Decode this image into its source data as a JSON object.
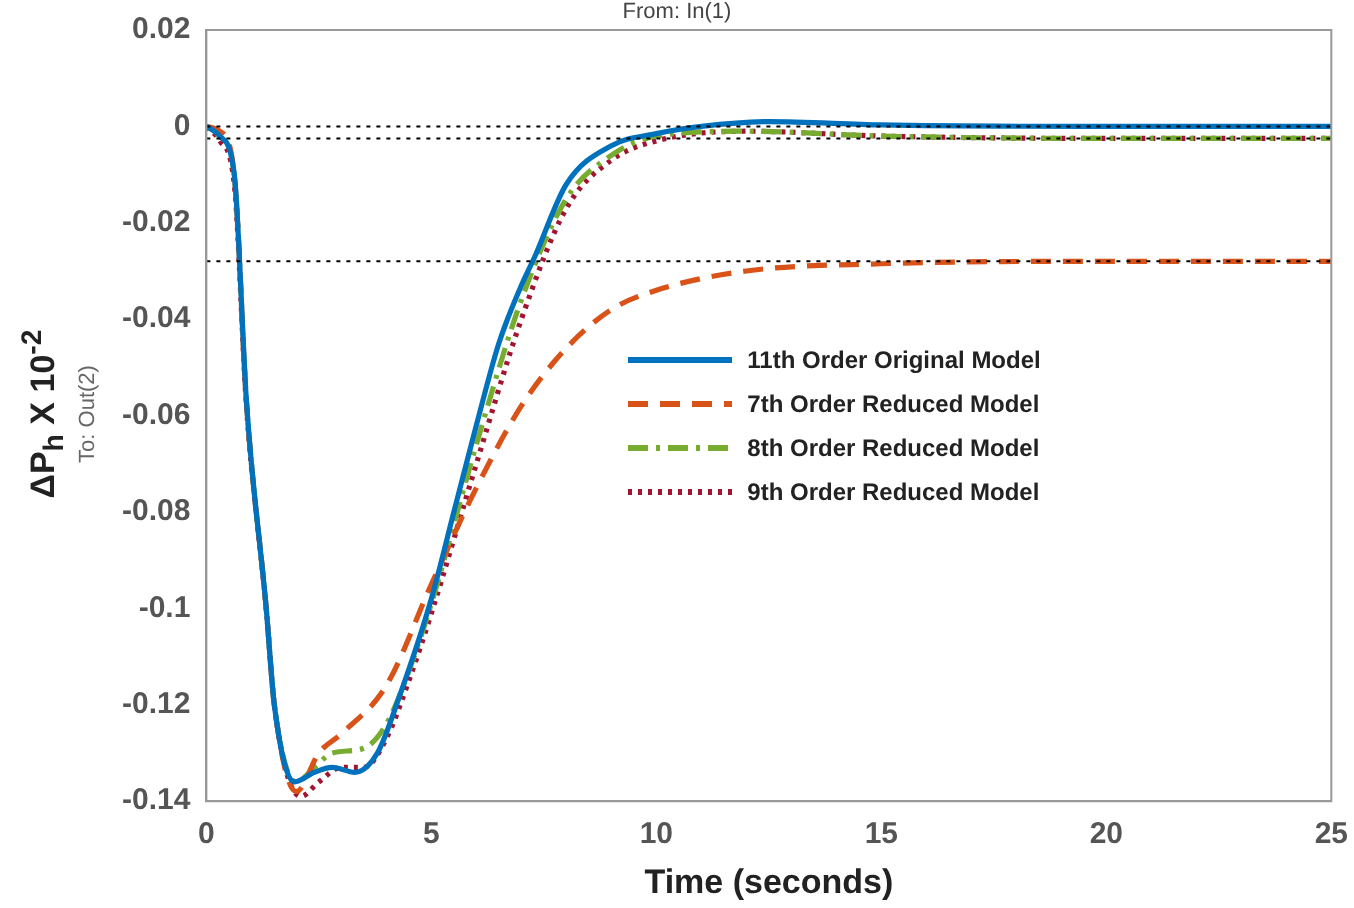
{
  "chart_data": {
    "type": "line",
    "title": "From: In(1)",
    "xlabel": "Time (seconds)",
    "ylabel": "ΔP$_{h}$ X 10$^{-2}$",
    "annotations": [
      "To: Out(2)"
    ],
    "xlim": [
      0,
      25
    ],
    "xticks": [
      0,
      5,
      10,
      15,
      20,
      25
    ],
    "ylim": [
      -0.14,
      0.02
    ],
    "yticks": [
      -0.14,
      -0.12,
      -0.1,
      -0.08,
      -0.06,
      -0.04,
      -0.02,
      0,
      0.02
    ],
    "grid": false,
    "legend": "right",
    "marker": "none",
    "ref_lines": [
      {
        "axis": "y",
        "value": 0,
        "color": "#000000",
        "line_style": "dotted"
      },
      {
        "axis": "y",
        "value": -0.0025,
        "color": "#000000",
        "line_style": "dotted"
      },
      {
        "axis": "y",
        "value": -0.028,
        "color": "#000000",
        "line_style": "dotted"
      }
    ],
    "series": [
      {
        "name": "11th Order Original Model",
        "color": "#0072bd",
        "line_style": "solid",
        "x": [
          0,
          0.3,
          0.62,
          0.89,
          1.33,
          1.51,
          1.96,
          2.4,
          2.8,
          3.3,
          3.8,
          4.3,
          5,
          5.5,
          6,
          6.5,
          7,
          7.3,
          8,
          9,
          10,
          11,
          12.5,
          15,
          20,
          25
        ],
        "values": [
          0,
          -0.002,
          -0.01,
          -0.057,
          -0.1,
          -0.12,
          -0.136,
          -0.134,
          -0.133,
          -0.134,
          -0.13,
          -0.118,
          -0.098,
          -0.08,
          -0.062,
          -0.045,
          -0.033,
          -0.027,
          -0.012,
          -0.004,
          -0.0015,
          0,
          0.001,
          0.0003,
          0,
          0
        ]
      },
      {
        "name": "7th Order Reduced Model",
        "color": "#d95319",
        "line_style": "dashed",
        "x": [
          0,
          0.3,
          0.62,
          0.89,
          1.33,
          1.51,
          2,
          2.5,
          3,
          4,
          5,
          6,
          7,
          8,
          9,
          10,
          12,
          15,
          20,
          25
        ],
        "values": [
          0,
          -0.001,
          -0.01,
          -0.057,
          -0.1,
          -0.12,
          -0.138,
          -0.13,
          -0.126,
          -0.116,
          -0.095,
          -0.075,
          -0.058,
          -0.046,
          -0.038,
          -0.034,
          -0.03,
          -0.0285,
          -0.028,
          -0.028
        ]
      },
      {
        "name": "8th Order Reduced Model",
        "color": "#77ac30",
        "line_style": "dashdot",
        "x": [
          0,
          0.3,
          0.62,
          0.89,
          1.33,
          1.51,
          2,
          2.4,
          2.8,
          3.5,
          4,
          4.5,
          5,
          6,
          7,
          8,
          9,
          10,
          12,
          15,
          20,
          25
        ],
        "values": [
          0,
          -0.002,
          -0.01,
          -0.057,
          -0.1,
          -0.12,
          -0.136,
          -0.133,
          -0.13,
          -0.129,
          -0.124,
          -0.113,
          -0.099,
          -0.066,
          -0.036,
          -0.015,
          -0.006,
          -0.002,
          -0.001,
          -0.002,
          -0.0025,
          -0.0025
        ]
      },
      {
        "name": "9th Order Reduced Model",
        "color": "#a2142f",
        "line_style": "dotted",
        "x": [
          0,
          0.3,
          0.62,
          0.89,
          1.33,
          1.51,
          2.1,
          2.5,
          3,
          3.5,
          4,
          4.5,
          5,
          6,
          7,
          8,
          9,
          10,
          12,
          15,
          20,
          25
        ],
        "values": [
          0,
          -0.003,
          -0.012,
          -0.058,
          -0.1,
          -0.12,
          -0.139,
          -0.136,
          -0.133,
          -0.133,
          -0.127,
          -0.115,
          -0.101,
          -0.07,
          -0.04,
          -0.017,
          -0.007,
          -0.003,
          -0.001,
          -0.002,
          -0.0025,
          -0.0025
        ]
      }
    ]
  }
}
